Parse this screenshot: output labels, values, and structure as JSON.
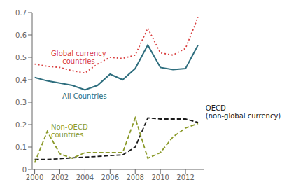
{
  "chart_data": {
    "type": "line",
    "x": [
      2000,
      2001,
      2002,
      2003,
      2004,
      2005,
      2006,
      2007,
      2008,
      2009,
      2010,
      2011,
      2012,
      2013
    ],
    "series": [
      {
        "color": "#d94040",
        "line_style": "dotted",
        "values": [
          0.47,
          0.46,
          0.455,
          0.44,
          0.43,
          0.47,
          0.5,
          0.495,
          0.51,
          0.63,
          0.52,
          0.51,
          0.54,
          0.68
        ]
      },
      {
        "color": "#2e6e7e",
        "line_style": "solid",
        "values": [
          0.41,
          0.395,
          0.385,
          0.375,
          0.355,
          0.375,
          0.425,
          0.4,
          0.45,
          0.555,
          0.455,
          0.445,
          0.45,
          0.555
        ]
      },
      {
        "color": "#1a1a1a",
        "line_style": "dashed",
        "values": [
          0.045,
          0.045,
          0.048,
          0.052,
          0.055,
          0.058,
          0.062,
          0.065,
          0.1,
          0.23,
          0.225,
          0.225,
          0.225,
          0.21
        ]
      },
      {
        "color": "#8b9a2a",
        "line_style": "dashed",
        "values": [
          0.03,
          0.17,
          0.07,
          0.05,
          0.075,
          0.075,
          0.075,
          0.075,
          0.23,
          0.05,
          0.075,
          0.145,
          0.185,
          0.205
        ]
      }
    ],
    "annotations": [
      {
        "text": "Global currency\ncountries",
        "x": 2003.5,
        "y": 0.5,
        "color": "#d94040"
      },
      {
        "text": "All Countries",
        "x": 2002.2,
        "y": 0.325,
        "color": "#2e6e7e"
      },
      {
        "text": "Non-OECD\ncountries",
        "x": 2001.3,
        "y": 0.17,
        "color": "#8b9a2a"
      },
      {
        "text": "OECD\n(non-global currency)",
        "x": 2013.6,
        "y": 0.255,
        "color": "#1a1a1a"
      }
    ],
    "xlim": [
      1999.8,
      2013.5
    ],
    "xticks": [
      2000,
      2002,
      2004,
      2006,
      2008,
      2010,
      2012
    ],
    "ylim": [
      0,
      0.7
    ],
    "yticks": [
      0,
      0.1,
      0.2,
      0.3,
      0.4,
      0.5,
      0.6,
      0.7
    ],
    "grid": false
  }
}
